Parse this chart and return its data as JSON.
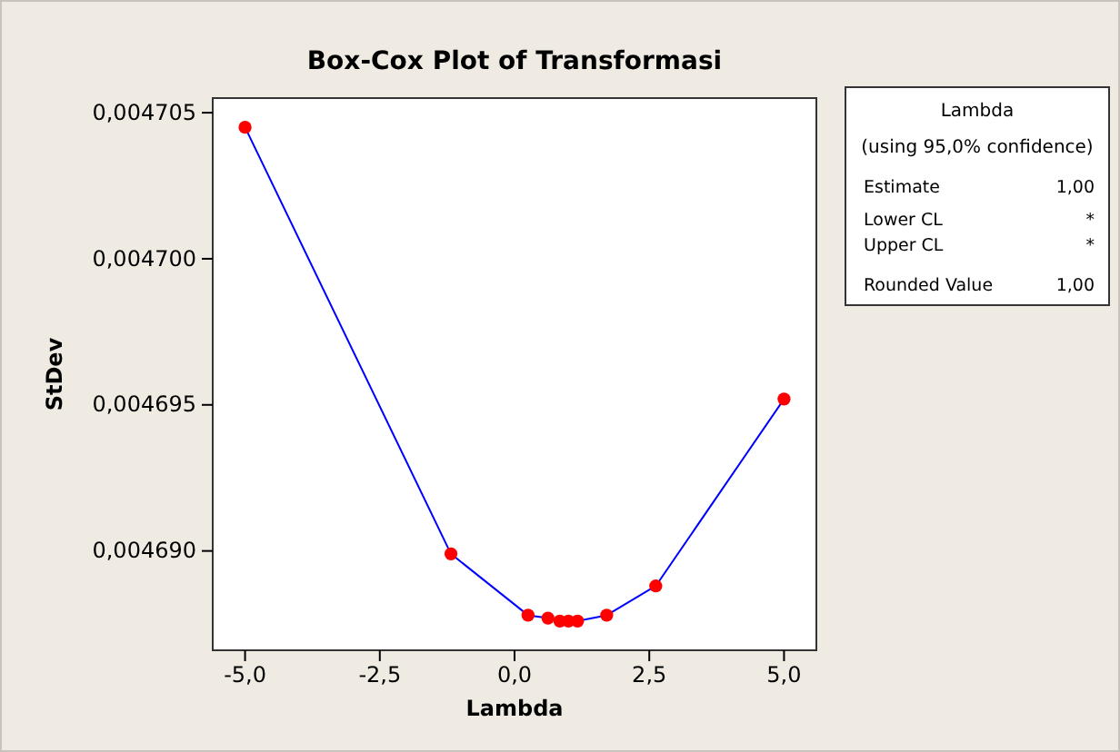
{
  "chart_data": {
    "type": "line",
    "title": "Box-Cox Plot of Transformasi",
    "xlabel": "Lambda",
    "ylabel": "StDev",
    "x": [
      -5,
      -1.18,
      0.25,
      0.62,
      0.84,
      1.0,
      1.17,
      1.71,
      2.62,
      5
    ],
    "series": [
      {
        "color": "#0000ff",
        "colors": [
          "#ff0000",
          "#ff0000",
          "#ff0000",
          "#ff0000",
          "#ff0000",
          "#ff0000",
          "#ff0000",
          "#ff0000",
          "#ff0000",
          "#ff0000"
        ],
        "values": [
          0.0047045,
          0.0046899,
          0.0046878,
          0.0046877,
          0.0046876,
          0.0046876,
          0.0046876,
          0.0046878,
          0.0046888,
          0.0046952
        ]
      }
    ],
    "marker": "circle",
    "line_style": "solid",
    "xlim": [
      -5.6,
      5.6
    ],
    "ylim": [
      0.0046866,
      0.0047055
    ],
    "xticks": [
      {
        "value": -5,
        "label": "-5,0"
      },
      {
        "value": -2.5,
        "label": "-2,5"
      },
      {
        "value": 0,
        "label": "0,0"
      },
      {
        "value": 2.5,
        "label": "2,5"
      },
      {
        "value": 5,
        "label": "5,0"
      }
    ],
    "yticks": [
      {
        "value": 0.00469,
        "label": "0,004690"
      },
      {
        "value": 0.004695,
        "label": "0,004695"
      },
      {
        "value": 0.0047,
        "label": "0,004700"
      },
      {
        "value": 0.004705,
        "label": "0,004705"
      }
    ],
    "grid": false,
    "annotations": [
      "Lambda",
      "(using 95,0% confidence)",
      "Estimate",
      "1,00",
      "Lower CL",
      "*",
      "Upper CL",
      "*",
      "Rounded Value",
      "1,00"
    ]
  }
}
